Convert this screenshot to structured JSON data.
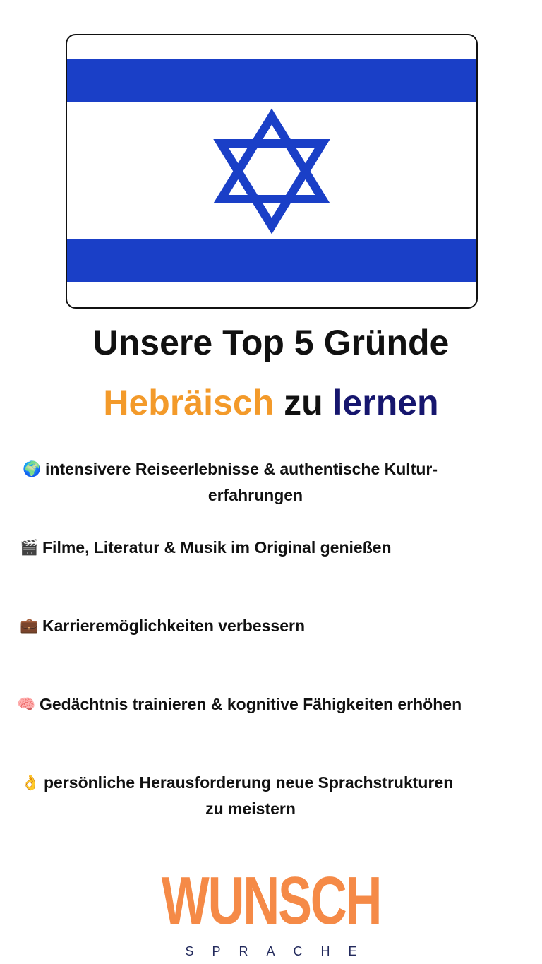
{
  "flag": {
    "colors": {
      "blue": "#1a3fc7",
      "white": "#ffffff"
    },
    "icon": "israel-flag"
  },
  "headline": {
    "line1": "Unsere Top 5 Gründe",
    "line2_a": "Hebräisch",
    "line2_b": "zu",
    "line2_c": "lernen",
    "colors": {
      "orange": "#f39a2a",
      "navy": "#16166e"
    }
  },
  "reasons": [
    {
      "icon": "globe-icon",
      "emoji": "🌍",
      "line1": "intensivere Reiseerlebnisse & authentische Kultur-",
      "line2": "erfahrungen"
    },
    {
      "icon": "clapperboard-icon",
      "emoji": "🎬",
      "line1": "Filme, Literatur & Musik im Original genießen"
    },
    {
      "icon": "briefcase-icon",
      "emoji": "💼",
      "line1": "Karrieremöglichkeiten verbessern"
    },
    {
      "icon": "brain-icon",
      "emoji": "🧠",
      "line1": "Gedächtnis trainieren & kognitive Fähigkeiten erhöhen"
    },
    {
      "icon": "ok-hand-icon",
      "emoji": "👌",
      "line1": "persönliche Herausforderung neue Sprachstrukturen",
      "line2": "zu meistern"
    }
  ],
  "logo": {
    "word": "WUNSCH",
    "sub": "SPRACHE",
    "colors": {
      "orange": "#f58a47",
      "navy": "#232a5c"
    }
  }
}
